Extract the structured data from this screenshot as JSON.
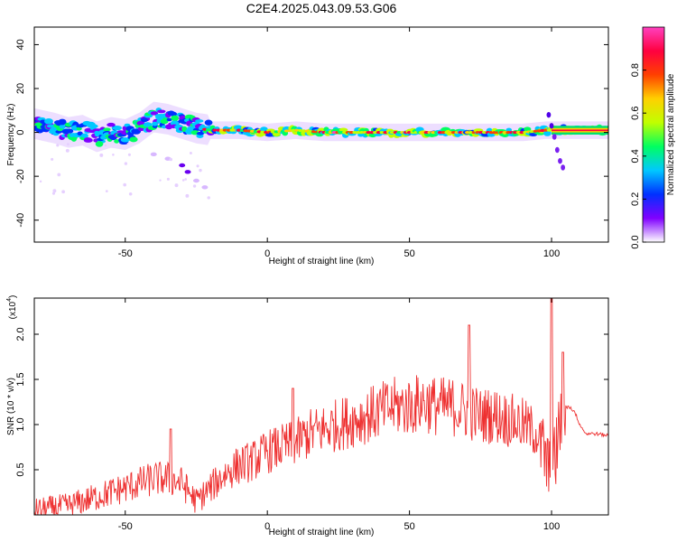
{
  "figure": {
    "title": "C2E4.2025.043.09.53.G06"
  },
  "chart_data": [
    {
      "type": "heatmap",
      "title": "C2E4.2025.043.09.53.G06",
      "xlabel": "Height of straight line (km)",
      "ylabel": "Frequency (Hz)",
      "xlim": [
        -82,
        120
      ],
      "ylim": [
        -50,
        48
      ],
      "xticks": [
        -50,
        0,
        50,
        100
      ],
      "yticks": [
        -40,
        -20,
        0,
        20,
        40
      ],
      "grid": false,
      "colormap": "rainbow (purple-blue-cyan-green-yellow-red-magenta)",
      "colorbar": {
        "label": "Normalized spectral amplitude",
        "range": [
          0,
          1
        ],
        "ticks": [
          0.0,
          0.2,
          0.4,
          0.6,
          0.8
        ],
        "colors": [
          "#ffffff",
          "#8000ff",
          "#0030ff",
          "#00c8ff",
          "#00ff60",
          "#c0ff00",
          "#ffd000",
          "#ff4000",
          "#ff0040",
          "#ff40c0"
        ]
      },
      "ridge": {
        "x": [
          -82,
          -75,
          -70,
          -65,
          -60,
          -55,
          -50,
          -45,
          -40,
          -35,
          -30,
          -25,
          -20,
          -10,
          0,
          10,
          20,
          30,
          40,
          50,
          60,
          70,
          80,
          90,
          98,
          100,
          120
        ],
        "center_freq": [
          4,
          2,
          0,
          1,
          -2,
          0,
          -1,
          2,
          7,
          6,
          4,
          2,
          1,
          1,
          0,
          1,
          0,
          0,
          0,
          0,
          0,
          0,
          0,
          0,
          1,
          1,
          1
        ]
      },
      "scatter_branch": {
        "x": [
          -40,
          -35,
          -30,
          -28,
          -25,
          -22
        ],
        "freq": [
          -10,
          -12,
          -15,
          -18,
          -22,
          -25
        ]
      },
      "drop_branch": {
        "x": [
          99,
          100,
          101,
          102,
          103,
          104
        ],
        "freq": [
          8,
          3,
          -2,
          -8,
          -13,
          -16
        ]
      }
    },
    {
      "type": "line",
      "xlabel": "Height of straight line (km)",
      "ylabel": "SNR (10 * v/v)",
      "yscale_label": "(x10",
      "yscale_exponent": "4",
      "xlim": [
        -82,
        120
      ],
      "ylim": [
        0,
        2.4
      ],
      "xticks": [
        -50,
        0,
        50,
        100
      ],
      "yticks": [
        0.5,
        1.0,
        1.5,
        2.0
      ],
      "ytick_labels": [
        "0.5",
        "1.0",
        "1.5",
        "2.0"
      ],
      "color": "#ee3030",
      "grid": false,
      "series": [
        {
          "x": [
            -82,
            -75,
            -70,
            -65,
            -60,
            -55,
            -50,
            -45,
            -40,
            -35,
            -30,
            -25,
            -20,
            -15,
            -10,
            -5,
            0,
            5,
            10,
            15,
            20,
            25,
            30,
            35,
            40,
            45,
            50,
            55,
            60,
            65,
            70,
            75,
            80,
            85,
            90,
            95,
            98,
            100,
            102,
            104,
            106,
            108,
            110,
            112,
            115,
            120
          ],
          "values": [
            0.05,
            0.08,
            0.1,
            0.15,
            0.2,
            0.25,
            0.3,
            0.35,
            0.4,
            0.4,
            0.35,
            0.15,
            0.3,
            0.45,
            0.55,
            0.6,
            0.7,
            0.75,
            0.8,
            0.9,
            0.95,
            1.0,
            1.05,
            1.1,
            1.15,
            1.2,
            1.2,
            1.25,
            1.2,
            1.2,
            1.15,
            1.1,
            1.1,
            1.05,
            1.0,
            0.9,
            0.6,
            0.3,
            0.8,
            1.2,
            1.2,
            1.15,
            1.0,
            0.9,
            0.9,
            0.88
          ],
          "peaks": [
            {
              "x": -34,
              "value": 0.95
            },
            {
              "x": 9,
              "value": 1.4
            },
            {
              "x": 71,
              "value": 2.1
            },
            {
              "x": 100,
              "value": 2.4
            },
            {
              "x": 104,
              "value": 1.8
            }
          ]
        }
      ]
    }
  ]
}
